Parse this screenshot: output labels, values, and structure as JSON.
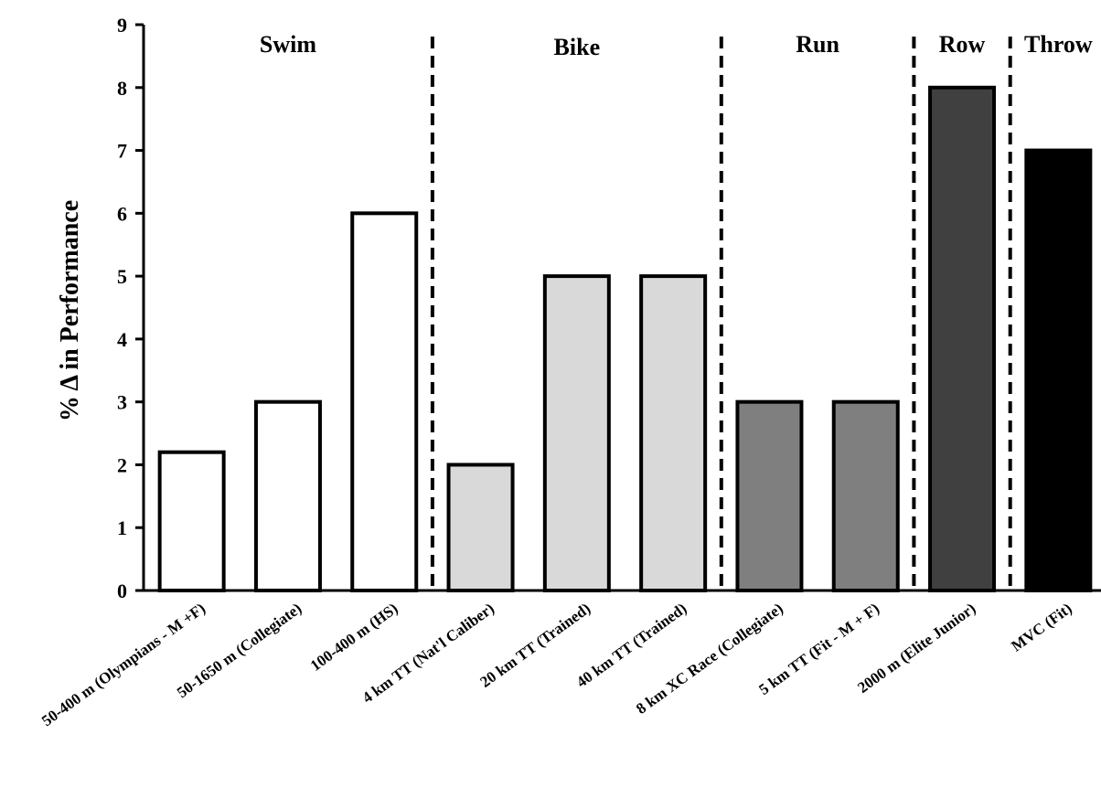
{
  "chart_data": {
    "type": "bar",
    "ylabel": "% Δ in Performance",
    "xlabel": "",
    "ylim": [
      0,
      9
    ],
    "yticks": [
      0,
      1,
      2,
      3,
      4,
      5,
      6,
      7,
      8,
      9
    ],
    "categories": [
      "50-400 m (Olympians - M +F)",
      "50-1650 m (Collegiate)",
      "100-400 m (HS)",
      "4 km TT (Nat'l Caliber)",
      "20 km TT (Trained)",
      "40 km TT (Trained)",
      "8 km XC Race (Collegiate)",
      "5 km TT (Fit - M + F)",
      "2000 m (Elite Junior)",
      "MVC (Fit)"
    ],
    "values": [
      2.2,
      3,
      6,
      2,
      5,
      5,
      3,
      3,
      8,
      7
    ],
    "groups": [
      {
        "label": "Swim",
        "start": 0,
        "end": 2,
        "color": "#ffffff"
      },
      {
        "label": "Bike",
        "start": 3,
        "end": 5,
        "color": "#d9d9d9"
      },
      {
        "label": "Run",
        "start": 6,
        "end": 7,
        "color": "#7f7f7f"
      },
      {
        "label": "Row",
        "start": 8,
        "end": 8,
        "color": "#404040"
      },
      {
        "label": "Throw",
        "start": 9,
        "end": 9,
        "color": "#000000"
      }
    ],
    "grid": false,
    "legend": "none"
  }
}
